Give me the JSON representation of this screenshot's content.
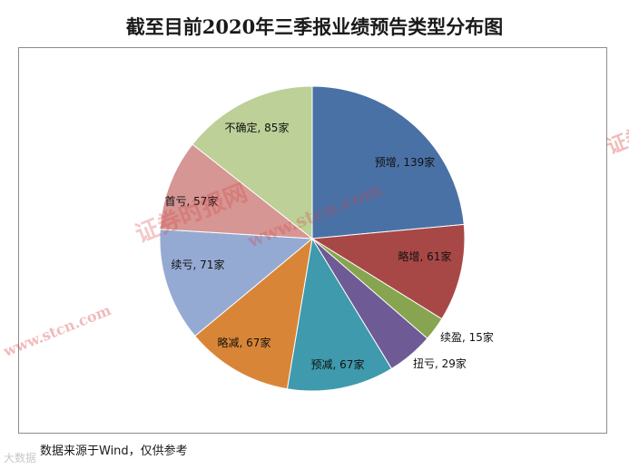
{
  "chart_data": {
    "type": "pie",
    "title": "截至目前2020年三季报业绩预告类型分布图",
    "source": "数据来源于Wind，仅供参考",
    "slices": [
      {
        "label": "预增, 139家",
        "value": 139,
        "color": "#4a71a6"
      },
      {
        "label": "略增, 61家",
        "value": 61,
        "color": "#a84846"
      },
      {
        "label": "续盈, 15家",
        "value": 15,
        "color": "#87a550"
      },
      {
        "label": "扭亏, 29家",
        "value": 29,
        "color": "#6e5a94"
      },
      {
        "label": "预减, 67家",
        "value": 67,
        "color": "#3e9aac"
      },
      {
        "label": "略减, 67家",
        "value": 67,
        "color": "#d98537"
      },
      {
        "label": "续亏, 71家",
        "value": 71,
        "color": "#95aad3"
      },
      {
        "label": "首亏, 57家",
        "value": 57,
        "color": "#d69693"
      },
      {
        "label": "不确定, 85家",
        "value": 85,
        "color": "#bcd098"
      }
    ]
  },
  "watermark": {
    "cn": "证券时报网",
    "en": "www.stcn.com"
  },
  "corner_logo": "大数据"
}
